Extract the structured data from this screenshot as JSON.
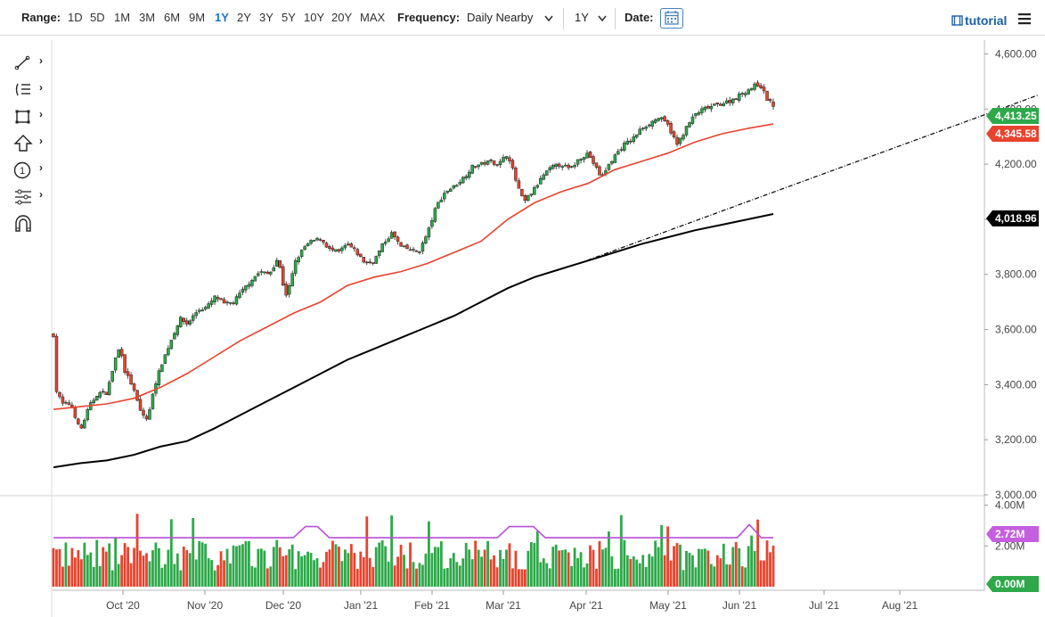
{
  "toolbar": {
    "range_label": "Range:",
    "ranges": [
      "1D",
      "5D",
      "1M",
      "3M",
      "6M",
      "9M",
      "1Y",
      "2Y",
      "3Y",
      "5Y",
      "10Y",
      "20Y",
      "MAX"
    ],
    "active_range": "1Y",
    "frequency_label": "Frequency:",
    "frequency_value": "Daily Nearby",
    "period_value": "1Y",
    "date_label": "Date:",
    "tutorial_label": "tutorial"
  },
  "chart_data": [
    {
      "type": "candlestick",
      "x_ticks": [
        "Oct '20",
        "Nov '20",
        "Dec '20",
        "Jan '21",
        "Feb '21",
        "Mar '21",
        "Apr '21",
        "May '21",
        "Jun '21",
        "Jul '21",
        "Aug '21"
      ],
      "y_ticks": [
        "4,600.00",
        "4,400.00",
        "4,200.00",
        "4,000.00",
        "3,800.00",
        "3,600.00",
        "3,400.00",
        "3,200.00",
        "3,000.00"
      ],
      "ylim": [
        3000,
        4650
      ],
      "price_points": [
        [
          0,
          3580
        ],
        [
          3,
          3380
        ],
        [
          10,
          3330
        ],
        [
          20,
          3330
        ],
        [
          30,
          3230
        ],
        [
          40,
          3320
        ],
        [
          50,
          3370
        ],
        [
          60,
          3370
        ],
        [
          70,
          3500
        ],
        [
          75,
          3540
        ],
        [
          80,
          3450
        ],
        [
          88,
          3400
        ],
        [
          98,
          3300
        ],
        [
          106,
          3270
        ],
        [
          112,
          3380
        ],
        [
          122,
          3480
        ],
        [
          132,
          3560
        ],
        [
          142,
          3640
        ],
        [
          150,
          3620
        ],
        [
          162,
          3670
        ],
        [
          172,
          3680
        ],
        [
          182,
          3720
        ],
        [
          192,
          3690
        ],
        [
          202,
          3700
        ],
        [
          212,
          3740
        ],
        [
          222,
          3780
        ],
        [
          232,
          3810
        ],
        [
          242,
          3800
        ],
        [
          252,
          3860
        ],
        [
          258,
          3760
        ],
        [
          262,
          3720
        ],
        [
          272,
          3850
        ],
        [
          282,
          3900
        ],
        [
          290,
          3920
        ],
        [
          300,
          3930
        ],
        [
          310,
          3890
        ],
        [
          320,
          3880
        ],
        [
          330,
          3910
        ],
        [
          340,
          3880
        ],
        [
          350,
          3840
        ],
        [
          360,
          3850
        ],
        [
          370,
          3910
        ],
        [
          380,
          3950
        ],
        [
          390,
          3900
        ],
        [
          400,
          3890
        ],
        [
          410,
          3880
        ],
        [
          420,
          3950
        ],
        [
          430,
          4050
        ],
        [
          440,
          4100
        ],
        [
          450,
          4120
        ],
        [
          460,
          4150
        ],
        [
          470,
          4190
        ],
        [
          480,
          4200
        ],
        [
          490,
          4210
        ],
        [
          500,
          4200
        ],
        [
          510,
          4240
        ],
        [
          520,
          4130
        ],
        [
          528,
          4060
        ],
        [
          540,
          4110
        ],
        [
          550,
          4160
        ],
        [
          560,
          4190
        ],
        [
          570,
          4200
        ],
        [
          580,
          4180
        ],
        [
          590,
          4220
        ],
        [
          600,
          4240
        ],
        [
          610,
          4180
        ],
        [
          615,
          4150
        ],
        [
          620,
          4180
        ],
        [
          630,
          4230
        ],
        [
          640,
          4270
        ],
        [
          650,
          4290
        ],
        [
          660,
          4330
        ],
        [
          670,
          4350
        ],
        [
          680,
          4370
        ],
        [
          690,
          4340
        ],
        [
          700,
          4270
        ],
        [
          710,
          4330
        ],
        [
          720,
          4380
        ],
        [
          730,
          4400
        ],
        [
          740,
          4410
        ],
        [
          750,
          4420
        ],
        [
          760,
          4430
        ],
        [
          770,
          4450
        ],
        [
          780,
          4470
        ],
        [
          790,
          4490
        ],
        [
          795,
          4480
        ],
        [
          800,
          4440
        ],
        [
          808,
          4413.25
        ]
      ],
      "ma50_points": [
        [
          0,
          3310
        ],
        [
          30,
          3320
        ],
        [
          60,
          3330
        ],
        [
          90,
          3350
        ],
        [
          120,
          3390
        ],
        [
          150,
          3440
        ],
        [
          180,
          3500
        ],
        [
          210,
          3560
        ],
        [
          240,
          3610
        ],
        [
          270,
          3660
        ],
        [
          300,
          3700
        ],
        [
          330,
          3760
        ],
        [
          360,
          3790
        ],
        [
          390,
          3810
        ],
        [
          420,
          3840
        ],
        [
          450,
          3880
        ],
        [
          480,
          3920
        ],
        [
          510,
          4000
        ],
        [
          540,
          4060
        ],
        [
          570,
          4100
        ],
        [
          600,
          4130
        ],
        [
          630,
          4180
        ],
        [
          660,
          4210
        ],
        [
          690,
          4240
        ],
        [
          720,
          4280
        ],
        [
          750,
          4310
        ],
        [
          780,
          4330
        ],
        [
          808,
          4345.58
        ]
      ],
      "ma200_points": [
        [
          0,
          3100
        ],
        [
          30,
          3115
        ],
        [
          60,
          3125
        ],
        [
          90,
          3145
        ],
        [
          120,
          3175
        ],
        [
          150,
          3195
        ],
        [
          180,
          3240
        ],
        [
          210,
          3290
        ],
        [
          240,
          3340
        ],
        [
          270,
          3390
        ],
        [
          300,
          3440
        ],
        [
          330,
          3490
        ],
        [
          360,
          3530
        ],
        [
          390,
          3570
        ],
        [
          420,
          3610
        ],
        [
          450,
          3650
        ],
        [
          480,
          3700
        ],
        [
          510,
          3750
        ],
        [
          540,
          3790
        ],
        [
          570,
          3820
        ],
        [
          600,
          3850
        ],
        [
          630,
          3880
        ],
        [
          660,
          3910
        ],
        [
          690,
          3935
        ],
        [
          720,
          3960
        ],
        [
          750,
          3980
        ],
        [
          780,
          4000
        ],
        [
          808,
          4018.96
        ]
      ],
      "trendline": [
        [
          590,
          3840
        ],
        [
          1105,
          4450
        ]
      ],
      "last_price": "4,413.25",
      "ma50_last": "4,345.58",
      "ma200_last": "4,018.96",
      "colors": {
        "up": "#2ea84a",
        "down": "#e8432d",
        "ma50": "#e8432d",
        "ma200": "#000000",
        "trend": "#000000"
      }
    },
    {
      "type": "bar",
      "y_ticks": [
        "4.00M",
        "2.00M"
      ],
      "ylim": [
        0,
        4.2
      ],
      "avg_volume_tag": "2.72M",
      "zero_tag": "0.00M",
      "colors": {
        "avg": "#b84fd6",
        "avg_tag": "#c55fe0",
        "zero_tag": "#2ea84a"
      }
    }
  ]
}
